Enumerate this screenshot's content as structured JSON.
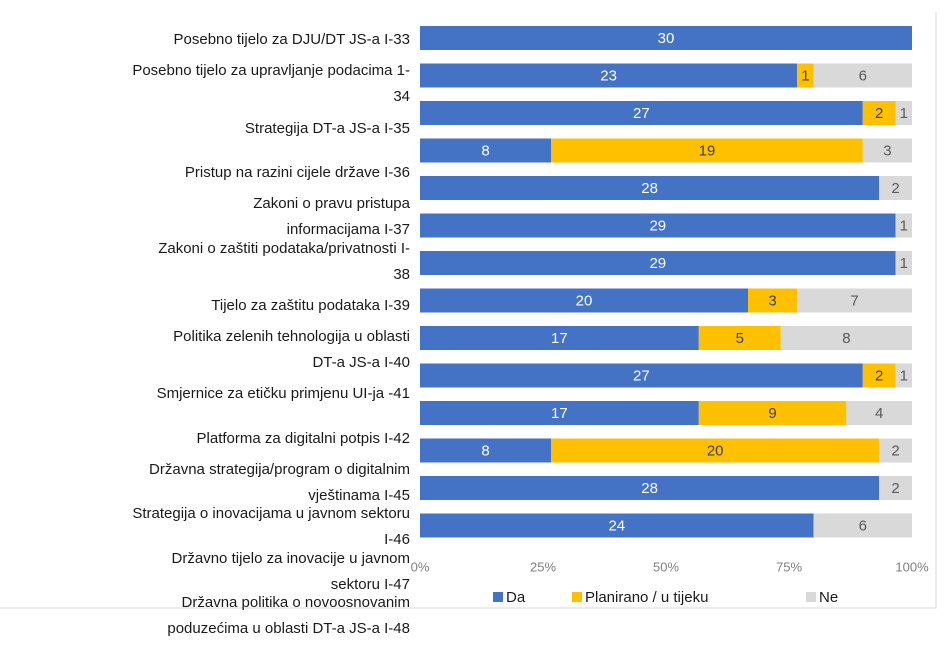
{
  "chart_data": {
    "type": "bar",
    "orientation": "horizontal",
    "stacked": "percent",
    "categories": [
      "Posebno tijelo za DJU/DT JS-a I-33",
      "Posebno tijelo za upravljanje podacima 1-\n34",
      "Strategija DT-a JS-a I-35",
      "Pristup na razini cijele države I-36",
      "Zakoni o pravu pristupa\ninformacijama I-37",
      "Zakoni o zaštiti podataka/privatnosti I-\n38",
      "Tijelo za zaštitu podataka I-39",
      "Politika zelenih tehnologija u oblasti\nDT-a JS-a I-40",
      "Smjernice za etičku primjenu UI-ja -41",
      "Platforma za digitalni potpis I-42",
      "Državna strategija/program o digitalnim\nvještinama I-45",
      "Strategija o inovacijama u javnom sektoru\nI-46",
      "Državno tijelo za inovacije u javnom\nsektoru I-47",
      "Državna politika o novoosnovanim\npoduzećima u oblasti DT-a JS-a I-48"
    ],
    "series": [
      {
        "name": "Da",
        "color": "#4472c4",
        "label_color": "#ffffff",
        "values": [
          30,
          23,
          27,
          8,
          28,
          29,
          29,
          20,
          17,
          27,
          17,
          8,
          28,
          24
        ]
      },
      {
        "name": "Planirano / u tijeku",
        "color": "#ffc000",
        "label_color": "#404040",
        "values": [
          0,
          1,
          2,
          19,
          0,
          0,
          0,
          3,
          5,
          2,
          9,
          20,
          0,
          0
        ]
      },
      {
        "name": "Ne",
        "color": "#d9d9d9",
        "label_color": "#595959",
        "values": [
          0,
          6,
          1,
          3,
          2,
          1,
          1,
          7,
          8,
          1,
          4,
          2,
          2,
          6
        ]
      }
    ],
    "xlim": [
      0,
      100
    ],
    "xticks": [
      {
        "value": 0,
        "label": "0%"
      },
      {
        "value": 25,
        "label": "25%"
      },
      {
        "value": 50,
        "label": "50%"
      },
      {
        "value": 75,
        "label": "75%"
      },
      {
        "value": 100,
        "label": "100%"
      }
    ],
    "legend": "bottom"
  }
}
